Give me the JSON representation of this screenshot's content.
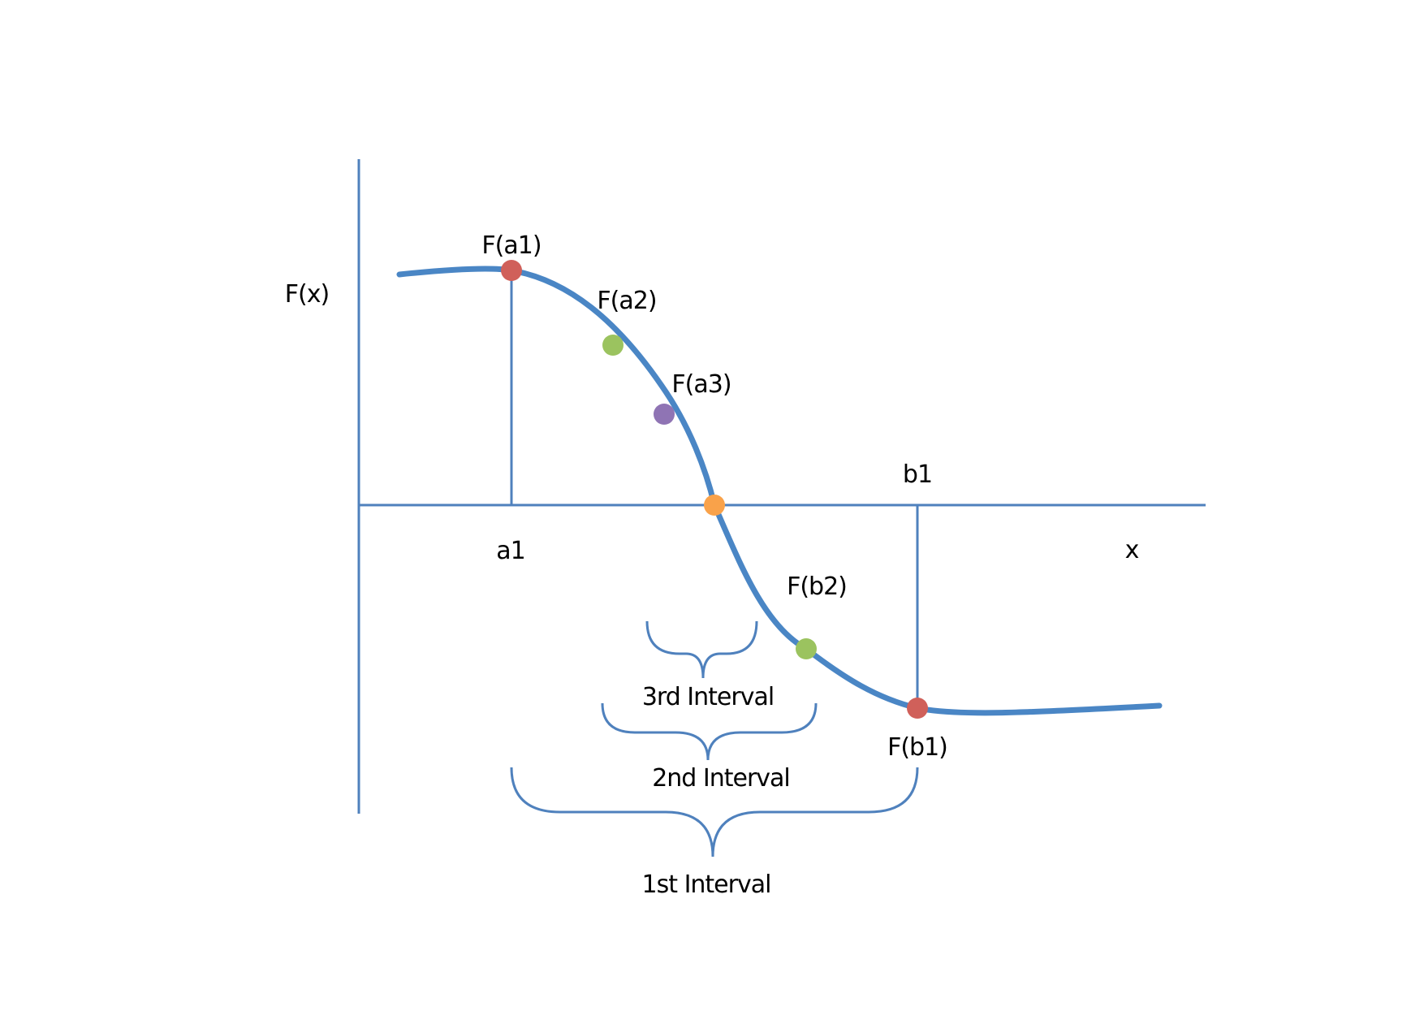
{
  "labels": {
    "y_axis": "F(x)",
    "x_axis": "x",
    "a1": "a1",
    "b1": "b1",
    "fa1": "F(a1)",
    "fa2": "F(a2)",
    "fa3": "F(a3)",
    "fb1": "F(b1)",
    "fb2": "F(b2)",
    "interval_1": "1st Interval",
    "interval_2": "2nd Interval",
    "interval_3": "3rd Interval"
  },
  "colors": {
    "axis": "#4f81bd",
    "curve": "#4a86c5",
    "point_a1": "#d0605a",
    "point_a2": "#9bc35f",
    "point_a3": "#8f74b4",
    "point_root": "#f9a24a",
    "point_b2": "#9bc35f",
    "point_b1": "#d0605a"
  }
}
